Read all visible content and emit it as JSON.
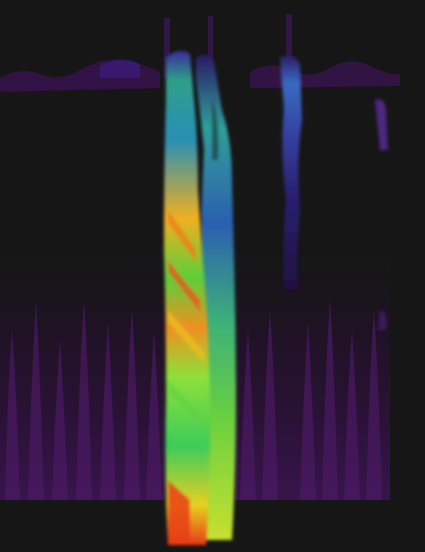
{
  "visualization": {
    "kind": "3d-spectrogram-waterfall",
    "background_color": "#161616",
    "colormap": [
      "#2a0a3a",
      "#3a1466",
      "#3a2a9a",
      "#2f5fb4",
      "#1f8fb0",
      "#23b08a",
      "#4ccc4a",
      "#a8e030",
      "#f0d020",
      "#f08a18",
      "#e83818"
    ],
    "bands": [
      {
        "name": "left-background-noise",
        "intensity": 0.12
      },
      {
        "name": "main-signal-band",
        "intensity": 0.95
      },
      {
        "name": "secondary-signal-band",
        "intensity": 0.65
      },
      {
        "name": "right-signal-band",
        "intensity": 0.35
      },
      {
        "name": "right-background-noise",
        "intensity": 0.12
      }
    ]
  }
}
